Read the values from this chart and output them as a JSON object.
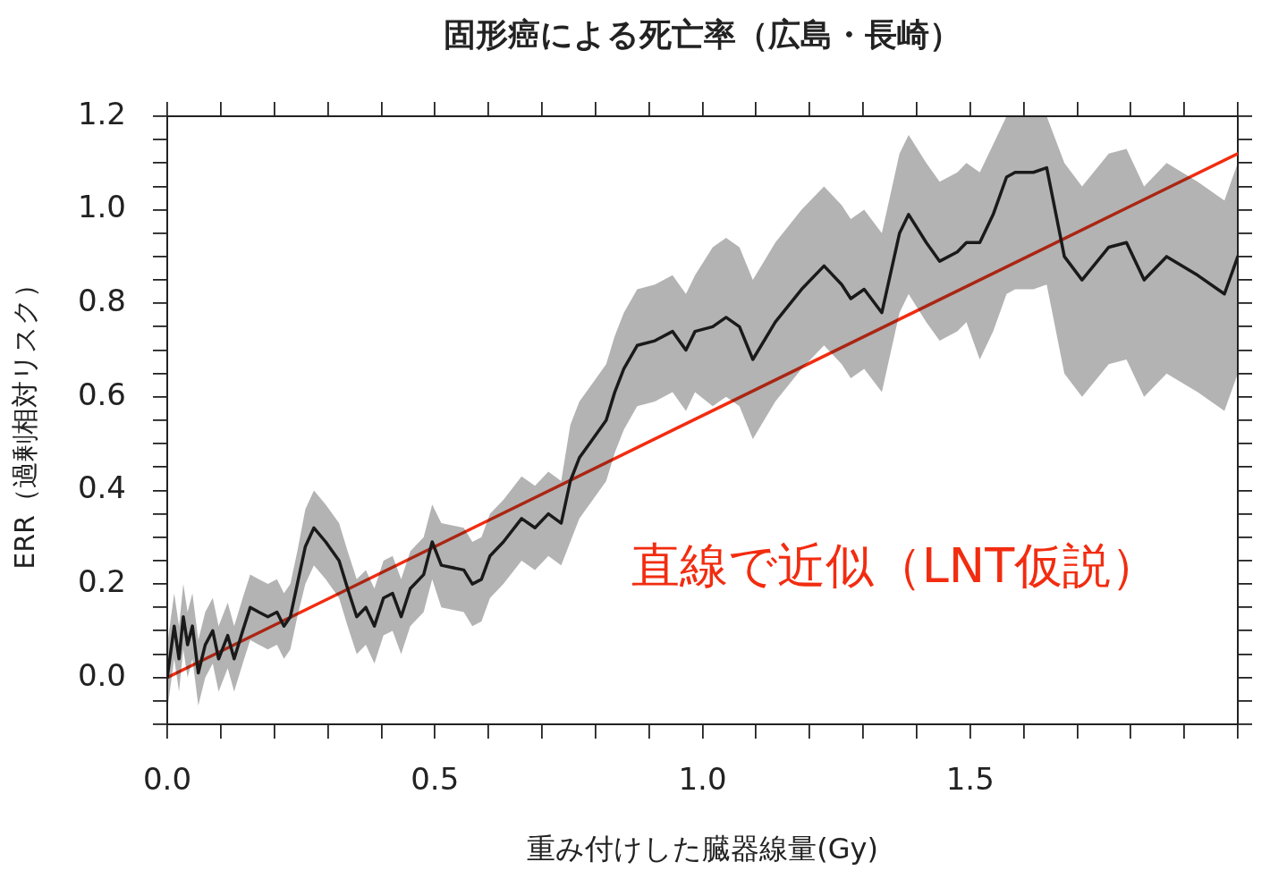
{
  "chart_data": {
    "type": "line",
    "title": "固形癌による死亡率（広島・長崎）",
    "xlabel": "重み付けした臓器線量(Gy)",
    "ylabel": "ERR（過剰相対リスク）",
    "xlim": [
      0,
      2
    ],
    "ylim": [
      -0.1,
      1.2
    ],
    "xticks": [
      {
        "value": 0,
        "label": "0.0"
      },
      {
        "value": 0.1,
        "label": null
      },
      {
        "value": 0.2,
        "label": null
      },
      {
        "value": 0.3,
        "label": null
      },
      {
        "value": 0.4,
        "label": null
      },
      {
        "value": 0.5,
        "label": "0.5"
      },
      {
        "value": 0.6,
        "label": null
      },
      {
        "value": 0.7,
        "label": null
      },
      {
        "value": 0.8,
        "label": null
      },
      {
        "value": 0.9,
        "label": null
      },
      {
        "value": 1,
        "label": "1.0"
      },
      {
        "value": 1.1,
        "label": null
      },
      {
        "value": 1.2,
        "label": null
      },
      {
        "value": 1.3,
        "label": null
      },
      {
        "value": 1.4,
        "label": null
      },
      {
        "value": 1.5,
        "label": "1.5"
      },
      {
        "value": 1.6,
        "label": null
      },
      {
        "value": 1.7,
        "label": null
      },
      {
        "value": 1.8,
        "label": null
      },
      {
        "value": 1.9,
        "label": null
      },
      {
        "value": 2,
        "label": null
      }
    ],
    "yticks": [
      {
        "value": -0.1,
        "label": null
      },
      {
        "value": -0.05,
        "label": null
      },
      {
        "value": 0,
        "label": "0.0"
      },
      {
        "value": 0.05,
        "label": null
      },
      {
        "value": 0.1,
        "label": null
      },
      {
        "value": 0.15,
        "label": null
      },
      {
        "value": 0.2,
        "label": "0.2"
      },
      {
        "value": 0.25,
        "label": null
      },
      {
        "value": 0.3,
        "label": null
      },
      {
        "value": 0.35,
        "label": null
      },
      {
        "value": 0.4,
        "label": "0.4"
      },
      {
        "value": 0.45,
        "label": null
      },
      {
        "value": 0.5,
        "label": null
      },
      {
        "value": 0.55,
        "label": null
      },
      {
        "value": 0.6,
        "label": "0.6"
      },
      {
        "value": 0.65,
        "label": null
      },
      {
        "value": 0.7,
        "label": null
      },
      {
        "value": 0.75,
        "label": null
      },
      {
        "value": 0.8,
        "label": "0.8"
      },
      {
        "value": 0.85,
        "label": null
      },
      {
        "value": 0.9,
        "label": null
      },
      {
        "value": 0.95,
        "label": null
      },
      {
        "value": 1,
        "label": "1.0"
      },
      {
        "value": 1.05,
        "label": null
      },
      {
        "value": 1.1,
        "label": null
      },
      {
        "value": 1.15,
        "label": null
      },
      {
        "value": 1.2,
        "label": "1.2"
      }
    ],
    "grid": false,
    "legend": false,
    "marker": "none",
    "series": [
      {
        "type": "line",
        "color": "#1a1a1a",
        "line_style": "solid",
        "x": [
          0,
          0.013,
          0.022,
          0.03,
          0.038,
          0.047,
          0.058,
          0.071,
          0.085,
          0.096,
          0.113,
          0.125,
          0.141,
          0.155,
          0.171,
          0.188,
          0.205,
          0.218,
          0.23,
          0.243,
          0.258,
          0.274,
          0.296,
          0.321,
          0.337,
          0.354,
          0.371,
          0.387,
          0.404,
          0.421,
          0.437,
          0.454,
          0.479,
          0.495,
          0.512,
          0.554,
          0.57,
          0.587,
          0.603,
          0.628,
          0.662,
          0.687,
          0.712,
          0.736,
          0.753,
          0.77,
          0.795,
          0.82,
          0.836,
          0.853,
          0.878,
          0.911,
          0.944,
          0.969,
          0.986,
          1.019,
          1.044,
          1.069,
          1.094,
          1.136,
          1.185,
          1.227,
          1.26,
          1.277,
          1.302,
          1.335,
          1.368,
          1.385,
          1.418,
          1.443,
          1.476,
          1.493,
          1.518,
          1.543,
          1.568,
          1.584,
          1.618,
          1.643,
          1.676,
          1.709,
          1.759,
          1.792,
          1.825,
          1.867,
          1.925,
          1.975,
          2.0
        ],
        "values": [
          0,
          0.11,
          0.04,
          0.13,
          0.07,
          0.11,
          0.01,
          0.07,
          0.1,
          0.04,
          0.09,
          0.04,
          0.1,
          0.15,
          0.14,
          0.13,
          0.14,
          0.11,
          0.13,
          0.2,
          0.28,
          0.32,
          0.29,
          0.25,
          0.19,
          0.13,
          0.15,
          0.11,
          0.17,
          0.18,
          0.13,
          0.19,
          0.22,
          0.29,
          0.24,
          0.23,
          0.2,
          0.21,
          0.26,
          0.29,
          0.34,
          0.32,
          0.35,
          0.33,
          0.42,
          0.47,
          0.51,
          0.55,
          0.61,
          0.66,
          0.71,
          0.72,
          0.74,
          0.7,
          0.74,
          0.75,
          0.77,
          0.75,
          0.68,
          0.76,
          0.83,
          0.88,
          0.84,
          0.81,
          0.83,
          0.78,
          0.95,
          0.99,
          0.93,
          0.89,
          0.91,
          0.93,
          0.93,
          0.99,
          1.07,
          1.08,
          1.08,
          1.09,
          0.9,
          0.85,
          0.92,
          0.93,
          0.85,
          0.9,
          0.86,
          0.82,
          0.9
        ],
        "lower": [
          -0.07,
          0.04,
          -0.03,
          0.06,
          0.0,
          0.04,
          -0.06,
          0.0,
          0.03,
          -0.03,
          0.02,
          -0.03,
          0.03,
          0.08,
          0.07,
          0.06,
          0.07,
          0.04,
          0.06,
          0.13,
          0.2,
          0.24,
          0.21,
          0.17,
          0.11,
          0.05,
          0.07,
          0.03,
          0.09,
          0.1,
          0.05,
          0.11,
          0.14,
          0.21,
          0.15,
          0.14,
          0.11,
          0.12,
          0.17,
          0.2,
          0.25,
          0.23,
          0.26,
          0.24,
          0.29,
          0.34,
          0.38,
          0.42,
          0.48,
          0.53,
          0.58,
          0.59,
          0.61,
          0.57,
          0.61,
          0.58,
          0.6,
          0.58,
          0.51,
          0.59,
          0.66,
          0.71,
          0.67,
          0.64,
          0.66,
          0.61,
          0.78,
          0.82,
          0.76,
          0.72,
          0.74,
          0.76,
          0.68,
          0.74,
          0.82,
          0.83,
          0.83,
          0.84,
          0.65,
          0.6,
          0.67,
          0.68,
          0.6,
          0.65,
          0.61,
          0.57,
          0.65
        ],
        "upper": [
          0.07,
          0.18,
          0.11,
          0.2,
          0.14,
          0.18,
          0.08,
          0.14,
          0.17,
          0.11,
          0.16,
          0.11,
          0.17,
          0.22,
          0.21,
          0.2,
          0.21,
          0.18,
          0.2,
          0.27,
          0.36,
          0.4,
          0.37,
          0.33,
          0.27,
          0.21,
          0.23,
          0.19,
          0.25,
          0.26,
          0.21,
          0.27,
          0.3,
          0.37,
          0.33,
          0.32,
          0.29,
          0.3,
          0.35,
          0.38,
          0.43,
          0.41,
          0.44,
          0.42,
          0.54,
          0.59,
          0.63,
          0.67,
          0.73,
          0.78,
          0.83,
          0.84,
          0.86,
          0.82,
          0.86,
          0.92,
          0.94,
          0.92,
          0.85,
          0.93,
          1.0,
          1.05,
          1.01,
          0.98,
          1.0,
          0.95,
          1.12,
          1.16,
          1.1,
          1.06,
          1.08,
          1.1,
          1.08,
          1.14,
          1.2,
          1.2,
          1.2,
          1.2,
          1.1,
          1.05,
          1.12,
          1.13,
          1.05,
          1.1,
          1.06,
          1.02,
          1.1
        ]
      },
      {
        "type": "line",
        "color": "#f22c10",
        "line_style": "solid",
        "x": [
          0,
          2
        ],
        "values": [
          0,
          1.12
        ]
      }
    ],
    "annotations": [
      "直線で近似（LNT仮説）"
    ]
  }
}
